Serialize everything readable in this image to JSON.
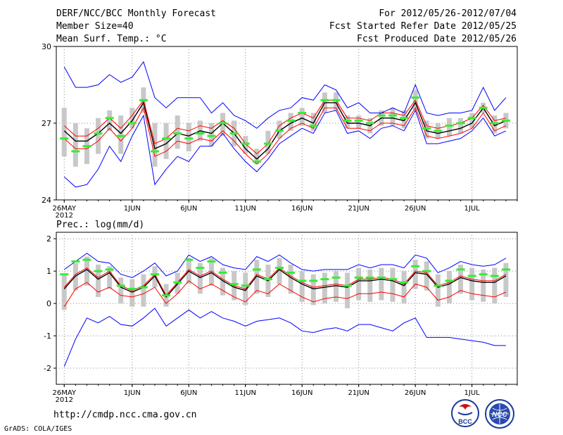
{
  "header": {
    "line1_left": "DERF/NCC/BCC Monthly Forecast",
    "line2_left": "Member Size=40",
    "line3_left": "Mean Surf. Temp.: °C",
    "line1_right": "For 2012/05/26-2012/07/04",
    "line2_right": "Fcst Started Refer Date 2012/05/25",
    "line3_right": "Fcst Produced Date 2012/05/26"
  },
  "footer": {
    "url": "http://cmdp.ncc.cma.gov.cn",
    "grads_credit": "GrADS: COLA/IGES",
    "logo_left_text": "BCC",
    "logo_right_text": "NCC"
  },
  "colors": {
    "mean": "#000000",
    "spread": "#ff0000",
    "extreme": "#0000ff",
    "obs_dash": "#33ee33",
    "box": "#c8c8c8",
    "grid": "#888888"
  },
  "chart_data": [
    {
      "type": "line",
      "title": "Mean Surf. Temp.: °C",
      "x_tick_labels": [
        "26MAY",
        "1JUN",
        "6JUN",
        "11JUN",
        "16JUN",
        "21JUN",
        "26JUN",
        "1JUL"
      ],
      "x_tick_days": [
        1,
        7,
        12,
        17,
        22,
        27,
        32,
        37
      ],
      "year_label": "2012",
      "xlim": [
        0.3,
        41
      ],
      "ylim": [
        24,
        30
      ],
      "y_ticks": [
        24,
        27,
        30
      ],
      "x_days": [
        1,
        2,
        3,
        4,
        5,
        6,
        7,
        8,
        9,
        10,
        11,
        12,
        13,
        14,
        15,
        16,
        17,
        18,
        19,
        20,
        21,
        22,
        23,
        24,
        25,
        26,
        27,
        28,
        29,
        30,
        31,
        32,
        33,
        34,
        35,
        36,
        37,
        38,
        39,
        40
      ],
      "series": [
        {
          "name": "ensemble mean",
          "color": "#000000",
          "values": [
            26.7,
            26.3,
            26.3,
            26.6,
            27.0,
            26.6,
            27.1,
            27.8,
            26.0,
            26.2,
            26.6,
            26.5,
            26.7,
            26.6,
            27.0,
            26.6,
            26.0,
            25.6,
            26.0,
            26.7,
            27.0,
            27.2,
            27.0,
            27.8,
            27.8,
            27.0,
            27.0,
            26.9,
            27.2,
            27.2,
            27.1,
            27.8,
            26.7,
            26.6,
            26.7,
            26.8,
            27.0,
            27.6,
            26.9,
            27.1
          ]
        },
        {
          "name": "upper spread",
          "color": "#ff0000",
          "values": [
            26.9,
            26.5,
            26.5,
            26.8,
            27.2,
            26.8,
            27.3,
            27.9,
            26.2,
            26.4,
            26.8,
            26.7,
            26.9,
            26.8,
            27.1,
            26.8,
            26.2,
            25.8,
            26.2,
            26.9,
            27.2,
            27.4,
            27.2,
            27.9,
            27.9,
            27.2,
            27.2,
            27.1,
            27.4,
            27.4,
            27.3,
            27.9,
            26.9,
            26.8,
            26.9,
            27.0,
            27.2,
            27.7,
            27.1,
            27.2
          ]
        },
        {
          "name": "lower spread",
          "color": "#ff0000",
          "values": [
            26.4,
            26.0,
            26.0,
            26.3,
            26.8,
            26.3,
            26.8,
            27.6,
            25.7,
            25.9,
            26.3,
            26.2,
            26.4,
            26.3,
            26.7,
            26.3,
            25.8,
            25.4,
            25.8,
            26.4,
            26.8,
            27.0,
            26.8,
            27.6,
            27.6,
            26.8,
            26.8,
            26.7,
            27.0,
            27.0,
            26.9,
            27.6,
            26.5,
            26.4,
            26.5,
            26.6,
            26.8,
            27.4,
            26.7,
            26.9
          ]
        },
        {
          "name": "ensemble max",
          "color": "#0000ff",
          "values": [
            29.2,
            28.4,
            28.4,
            28.5,
            28.9,
            28.6,
            28.8,
            29.4,
            28.0,
            27.6,
            28.0,
            28.0,
            28.0,
            27.4,
            27.8,
            27.3,
            27.1,
            26.8,
            27.2,
            27.5,
            27.6,
            28.0,
            27.9,
            28.5,
            28.3,
            27.6,
            27.8,
            27.4,
            27.4,
            27.6,
            27.4,
            28.5,
            27.4,
            27.3,
            27.4,
            27.4,
            27.5,
            28.4,
            27.5,
            28.0
          ]
        },
        {
          "name": "ensemble min",
          "color": "#0000ff",
          "values": [
            24.9,
            24.5,
            24.6,
            25.2,
            26.1,
            25.5,
            26.5,
            27.3,
            24.6,
            25.2,
            25.7,
            25.5,
            26.1,
            26.1,
            26.6,
            26.0,
            25.5,
            25.1,
            25.6,
            26.2,
            26.5,
            26.8,
            26.6,
            27.4,
            27.5,
            26.6,
            26.7,
            26.4,
            26.8,
            26.9,
            26.7,
            27.5,
            26.2,
            26.2,
            26.3,
            26.4,
            26.7,
            27.2,
            26.5,
            26.7
          ]
        },
        {
          "name": "observed/green dashes",
          "color": "#33ee33",
          "values": [
            26.4,
            25.9,
            26.1,
            26.6,
            27.2,
            26.5,
            27.0,
            27.9,
            25.9,
            26.4,
            26.6,
            26.4,
            26.6,
            26.5,
            27.0,
            26.6,
            26.2,
            25.5,
            26.2,
            26.7,
            27.1,
            27.4,
            26.9,
            27.9,
            27.9,
            27.1,
            27.1,
            27.0,
            27.3,
            27.3,
            27.2,
            28.0,
            26.8,
            26.7,
            26.9,
            27.0,
            27.2,
            27.6,
            27.0,
            27.1
          ]
        }
      ],
      "boxes": {
        "lower": [
          25.7,
          25.3,
          25.4,
          25.8,
          26.7,
          25.8,
          26.8,
          27.4,
          25.3,
          25.6,
          26.0,
          25.9,
          26.3,
          26.1,
          26.5,
          26.1,
          25.8,
          25.4,
          25.8,
          26.4,
          26.7,
          26.9,
          26.7,
          27.4,
          27.5,
          26.8,
          26.8,
          26.6,
          26.9,
          26.9,
          26.8,
          27.5,
          26.4,
          26.4,
          26.5,
          26.6,
          26.8,
          27.4,
          26.6,
          26.8
        ],
        "upper": [
          27.6,
          27.0,
          26.8,
          27.2,
          27.5,
          27.3,
          27.6,
          28.4,
          27.0,
          27.0,
          27.3,
          27.0,
          27.1,
          27.0,
          27.4,
          27.1,
          26.5,
          26.0,
          26.7,
          27.1,
          27.4,
          27.6,
          27.4,
          28.2,
          28.2,
          27.3,
          27.3,
          27.2,
          27.5,
          27.6,
          27.5,
          28.3,
          27.1,
          27.0,
          27.2,
          27.2,
          27.4,
          27.8,
          27.3,
          27.4
        ]
      }
    },
    {
      "type": "line",
      "title": "Prec.: log(mm/d)",
      "x_tick_labels": [
        "26MAY",
        "1JUN",
        "6JUN",
        "11JUN",
        "16JUN",
        "21JUN",
        "26JUN",
        "1JUL"
      ],
      "x_tick_days": [
        1,
        7,
        12,
        17,
        22,
        27,
        32,
        37
      ],
      "year_label": "2012",
      "xlim": [
        0.3,
        41
      ],
      "ylim": [
        -2.5,
        2.2
      ],
      "y_ticks": [
        -2,
        -1,
        0,
        1,
        2
      ],
      "x_days": [
        1,
        2,
        3,
        4,
        5,
        6,
        7,
        8,
        9,
        10,
        11,
        12,
        13,
        14,
        15,
        16,
        17,
        18,
        19,
        20,
        21,
        22,
        23,
        24,
        25,
        26,
        27,
        28,
        29,
        30,
        31,
        32,
        33,
        34,
        35,
        36,
        37,
        38,
        39,
        40
      ],
      "series": [
        {
          "name": "ensemble mean",
          "color": "#000000",
          "values": [
            0.45,
            0.85,
            1.05,
            0.75,
            0.95,
            0.5,
            0.35,
            0.5,
            0.85,
            0.2,
            0.6,
            1.0,
            0.8,
            0.95,
            0.7,
            0.5,
            0.4,
            0.85,
            0.7,
            1.05,
            0.8,
            0.6,
            0.45,
            0.5,
            0.55,
            0.5,
            0.7,
            0.7,
            0.75,
            0.7,
            0.55,
            0.95,
            0.9,
            0.5,
            0.6,
            0.8,
            0.7,
            0.65,
            0.65,
            0.85
          ]
        },
        {
          "name": "upper spread",
          "color": "#ff0000",
          "values": [
            0.5,
            0.9,
            1.1,
            0.8,
            1.0,
            0.55,
            0.4,
            0.55,
            0.9,
            0.25,
            0.65,
            1.05,
            0.85,
            1.0,
            0.75,
            0.55,
            0.45,
            0.9,
            0.75,
            1.1,
            0.85,
            0.65,
            0.5,
            0.55,
            0.6,
            0.55,
            0.75,
            0.75,
            0.8,
            0.75,
            0.6,
            1.0,
            0.95,
            0.55,
            0.65,
            0.85,
            0.75,
            0.7,
            0.7,
            0.9
          ]
        },
        {
          "name": "lower spread",
          "color": "#ff0000",
          "values": [
            -0.1,
            0.45,
            0.65,
            0.35,
            0.5,
            0.25,
            0.2,
            0.3,
            0.5,
            0.0,
            0.3,
            0.7,
            0.45,
            0.6,
            0.4,
            0.2,
            0.05,
            0.4,
            0.3,
            0.6,
            0.4,
            0.2,
            0.05,
            0.15,
            0.2,
            0.15,
            0.3,
            0.3,
            0.35,
            0.3,
            0.2,
            0.6,
            0.5,
            0.1,
            0.2,
            0.4,
            0.3,
            0.25,
            0.2,
            0.35
          ]
        },
        {
          "name": "ensemble max",
          "color": "#0000ff",
          "values": [
            1.05,
            1.3,
            1.55,
            1.3,
            1.25,
            0.9,
            0.8,
            1.0,
            1.25,
            0.85,
            1.0,
            1.5,
            1.3,
            1.45,
            1.2,
            1.1,
            1.05,
            1.45,
            1.3,
            1.5,
            1.25,
            1.05,
            1.0,
            1.05,
            1.05,
            1.05,
            1.2,
            1.1,
            1.2,
            1.2,
            1.1,
            1.5,
            1.4,
            0.95,
            1.1,
            1.3,
            1.2,
            1.15,
            1.2,
            1.4
          ]
        },
        {
          "name": "ensemble min",
          "color": "#0000ff",
          "values": [
            -1.95,
            -1.1,
            -0.45,
            -0.6,
            -0.4,
            -0.65,
            -0.7,
            -0.45,
            -0.15,
            -0.7,
            -0.45,
            -0.2,
            -0.45,
            -0.25,
            -0.45,
            -0.55,
            -0.7,
            -0.55,
            -0.5,
            -0.45,
            -0.6,
            -0.85,
            -0.9,
            -0.8,
            -0.75,
            -0.85,
            -0.65,
            -0.65,
            -0.75,
            -0.85,
            -0.6,
            -0.45,
            -1.05,
            -1.05,
            -1.05,
            -1.1,
            -1.15,
            -1.2,
            -1.3,
            -1.3
          ]
        },
        {
          "name": "observed/green dashes",
          "color": "#33ee33",
          "values": [
            0.9,
            1.3,
            1.35,
            1.0,
            1.05,
            0.55,
            0.45,
            0.5,
            0.9,
            0.25,
            0.65,
            1.35,
            1.1,
            1.3,
            0.95,
            0.6,
            0.55,
            1.05,
            0.75,
            1.1,
            0.95,
            0.7,
            0.7,
            0.75,
            0.8,
            0.55,
            0.8,
            0.8,
            0.8,
            0.75,
            0.65,
            1.15,
            1.0,
            0.55,
            0.7,
            1.05,
            0.85,
            0.9,
            0.85,
            1.05
          ]
        }
      ],
      "boxes": {
        "lower": [
          -0.2,
          0.4,
          0.55,
          0.2,
          0.45,
          0.0,
          -0.1,
          -0.1,
          0.5,
          -0.1,
          0.3,
          0.6,
          0.3,
          0.55,
          0.25,
          0.1,
          -0.05,
          0.3,
          0.2,
          0.6,
          0.3,
          0.05,
          -0.05,
          0.0,
          0.05,
          -0.15,
          0.1,
          0.05,
          0.1,
          0.05,
          0.0,
          0.45,
          0.4,
          -0.1,
          0.0,
          0.3,
          0.1,
          0.05,
          0.0,
          0.2
        ],
        "upper": [
          0.9,
          1.25,
          1.45,
          1.2,
          1.15,
          0.8,
          0.75,
          0.9,
          1.15,
          0.6,
          0.95,
          1.4,
          1.25,
          1.4,
          1.1,
          1.0,
          0.95,
          1.35,
          1.2,
          1.4,
          1.2,
          1.0,
          0.9,
          0.95,
          1.0,
          0.95,
          1.1,
          1.05,
          1.1,
          1.1,
          1.0,
          1.35,
          1.3,
          0.9,
          1.0,
          1.2,
          1.1,
          1.05,
          1.1,
          1.25
        ]
      }
    }
  ]
}
